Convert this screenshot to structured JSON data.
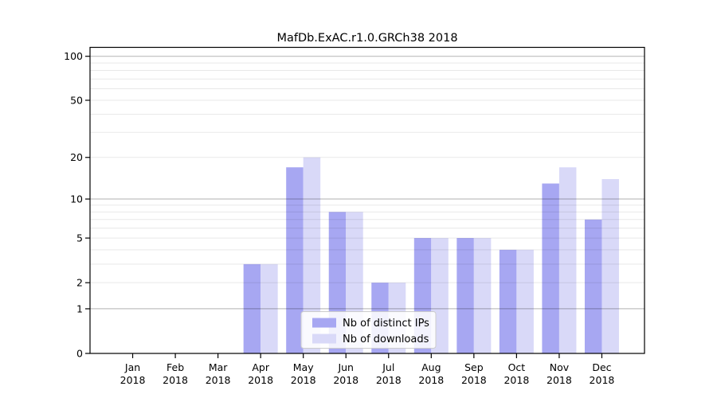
{
  "chart_data": {
    "type": "bar",
    "title": "MafDb.ExAC.r1.0.GRCh38 2018",
    "year_label": "2018",
    "categories": [
      "Jan",
      "Feb",
      "Mar",
      "Apr",
      "May",
      "Jun",
      "Jul",
      "Aug",
      "Sep",
      "Oct",
      "Nov",
      "Dec"
    ],
    "series": [
      {
        "name": "Nb of distinct IPs",
        "color": "#a7a7f2",
        "values": [
          0,
          0,
          0,
          3,
          17,
          8,
          2,
          5,
          5,
          4,
          13,
          7
        ]
      },
      {
        "name": "Nb of downloads",
        "color": "#d9d9f8",
        "values": [
          0,
          0,
          0,
          3,
          20,
          8,
          2,
          5,
          5,
          4,
          17,
          14
        ]
      }
    ],
    "y_ticks": [
      0,
      1,
      2,
      5,
      10,
      20,
      50,
      100
    ],
    "y_scale": "log1p",
    "ylim": [
      0,
      115
    ],
    "xlabel": "",
    "ylabel": "",
    "grid": {
      "on": true,
      "major_values": [
        1,
        10,
        100
      ],
      "minor_values": [
        2,
        3,
        4,
        5,
        6,
        7,
        8,
        9,
        20,
        30,
        40,
        50,
        60,
        70,
        80,
        90
      ]
    },
    "legend": {
      "position": "lower center"
    }
  },
  "colors": {
    "background": "#ffffff",
    "bar_distinct_ips": "#a7a7f2",
    "bar_downloads": "#d9d9f8",
    "grid_major": "rgba(0,0,0,0.30)",
    "grid_minor": "rgba(0,0,0,0.09)",
    "axis": "#000000",
    "legend_border": "#cccccc",
    "legend_bg": "rgba(255,255,255,0.85)"
  }
}
